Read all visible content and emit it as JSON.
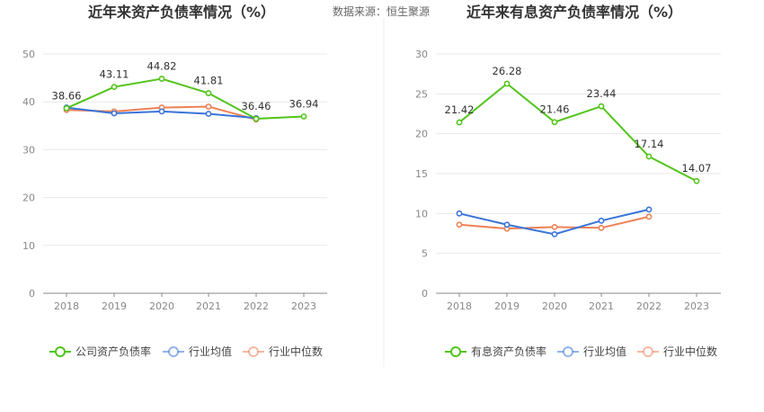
{
  "source_label": "数据来源：恒生聚源",
  "colors": {
    "company": "#52c41a",
    "avg": "#3a74d9",
    "median": "#ee8155"
  },
  "chart_data": [
    {
      "type": "line",
      "title": "近年来资产负债率情况（%）",
      "categories": [
        "2018",
        "2019",
        "2020",
        "2021",
        "2022",
        "2023"
      ],
      "ylim": [
        0,
        50
      ],
      "yticks": [
        "0",
        "10",
        "20",
        "30",
        "40",
        "50"
      ],
      "grid": true,
      "legend_position": "bottom",
      "series": [
        {
          "name": "公司资产负债率",
          "values": [
            38.66,
            43.11,
            44.82,
            41.81,
            36.46,
            36.94
          ],
          "labels": [
            "38.66",
            "43.11",
            "44.82",
            "41.81",
            "36.46",
            "36.94"
          ]
        },
        {
          "name": "行业均值",
          "values": [
            38.8,
            37.6,
            38.0,
            37.5,
            36.6,
            null
          ]
        },
        {
          "name": "行业中位数",
          "values": [
            38.3,
            38.0,
            38.8,
            39.0,
            36.3,
            null
          ]
        }
      ]
    },
    {
      "type": "line",
      "title": "近年来有息资产负债率情况（%）",
      "categories": [
        "2018",
        "2019",
        "2020",
        "2021",
        "2022",
        "2023"
      ],
      "ylim": [
        0,
        30
      ],
      "yticks": [
        "0",
        "5",
        "10",
        "15",
        "20",
        "25",
        "30"
      ],
      "grid": true,
      "legend_position": "bottom",
      "series": [
        {
          "name": "有息资产负债率",
          "values": [
            21.42,
            26.28,
            21.46,
            23.44,
            17.14,
            14.07
          ],
          "labels": [
            "21.42",
            "26.28",
            "21.46",
            "23.44",
            "17.14",
            "14.07"
          ]
        },
        {
          "name": "行业均值",
          "values": [
            10.0,
            8.6,
            7.4,
            9.1,
            10.5,
            null
          ]
        },
        {
          "name": "行业中位数",
          "values": [
            8.6,
            8.1,
            8.3,
            8.2,
            9.6,
            null
          ]
        }
      ]
    }
  ]
}
